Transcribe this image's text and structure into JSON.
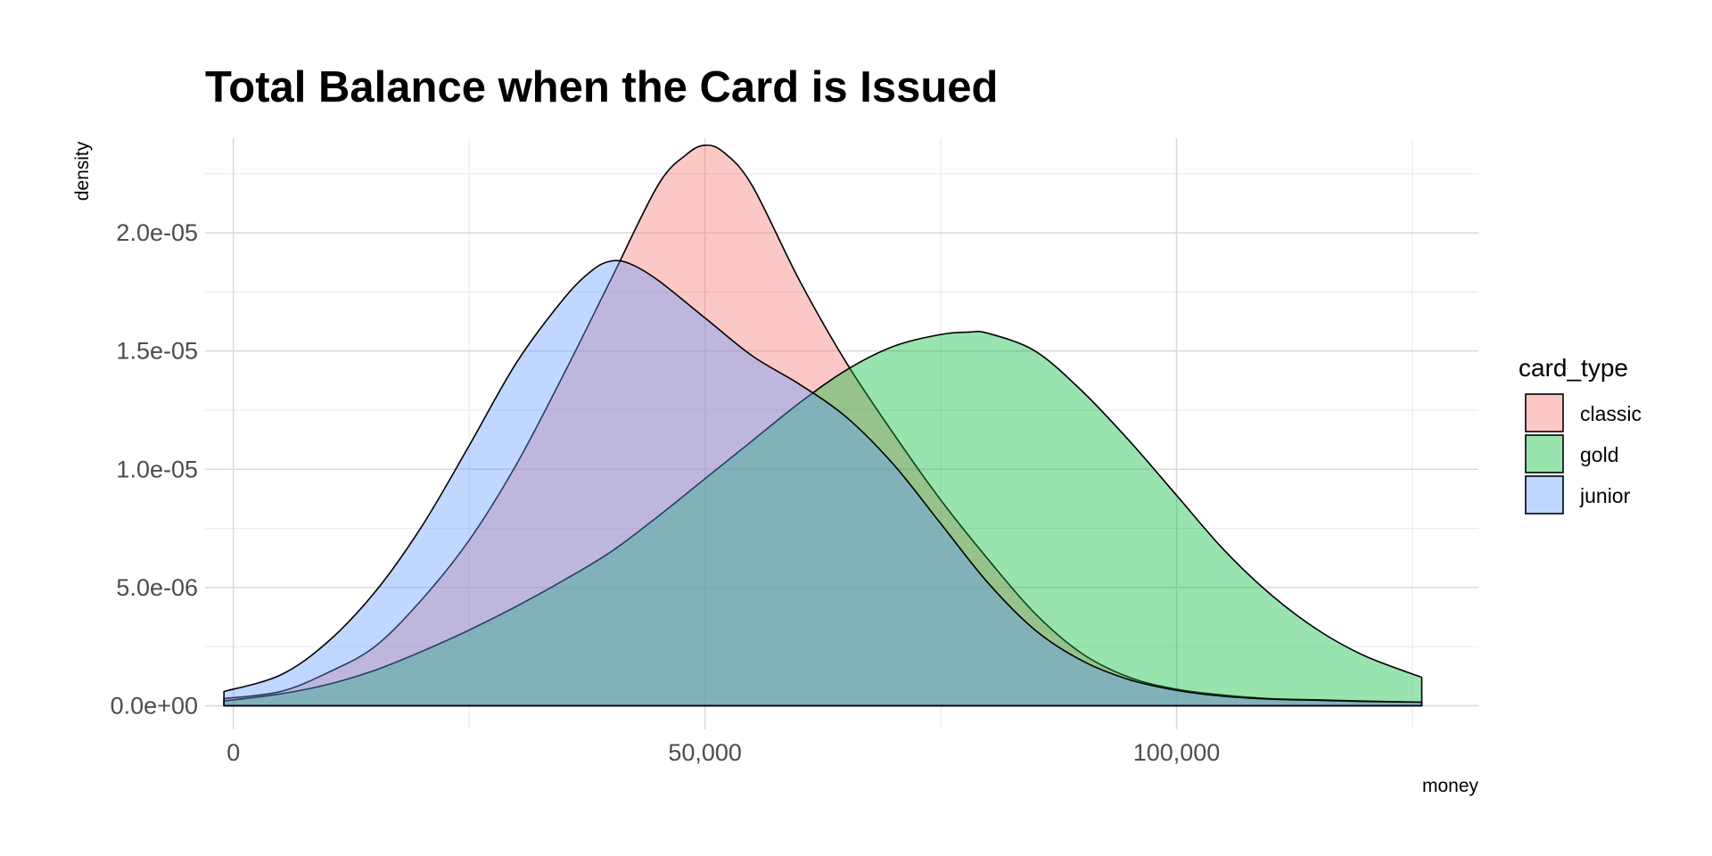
{
  "chart_data": {
    "type": "area",
    "subtype": "density",
    "title": "Total Balance when the Card is Issued",
    "xlabel": "money",
    "ylabel": "density",
    "xlim": [
      -3000,
      132000
    ],
    "ylim": [
      -1e-06,
      2.4e-05
    ],
    "x_ticks": [
      {
        "value": 0,
        "label": "0"
      },
      {
        "value": 50000,
        "label": "50,000"
      },
      {
        "value": 100000,
        "label": "100,000"
      }
    ],
    "x_minor_ticks": [
      25000,
      75000,
      125000
    ],
    "y_ticks": [
      {
        "value": 0,
        "label": "0.0e+00"
      },
      {
        "value": 5e-06,
        "label": "5.0e-06"
      },
      {
        "value": 1e-05,
        "label": "1.0e-05"
      },
      {
        "value": 1.5e-05,
        "label": "1.5e-05"
      },
      {
        "value": 2e-05,
        "label": "2.0e-05"
      }
    ],
    "y_minor_ticks": [
      2.5e-06,
      7.5e-06,
      1.25e-05,
      1.75e-05,
      2.25e-05
    ],
    "grid": true,
    "legend": {
      "title": "card_type",
      "position": "right"
    },
    "series": [
      {
        "name": "classic",
        "color": "#F8766D",
        "points": [
          [
            -1000,
            3e-07
          ],
          [
            5000,
            6e-07
          ],
          [
            10000,
            1.4e-06
          ],
          [
            15000,
            2.5e-06
          ],
          [
            20000,
            4.5e-06
          ],
          [
            25000,
            7e-06
          ],
          [
            30000,
            1.02e-05
          ],
          [
            35000,
            1.4e-05
          ],
          [
            40000,
            1.8e-05
          ],
          [
            45000,
            2.2e-05
          ],
          [
            48000,
            2.33e-05
          ],
          [
            50000,
            2.37e-05
          ],
          [
            52000,
            2.34e-05
          ],
          [
            55000,
            2.2e-05
          ],
          [
            60000,
            1.8e-05
          ],
          [
            65000,
            1.45e-05
          ],
          [
            70000,
            1.15e-05
          ],
          [
            75000,
            8.7e-06
          ],
          [
            80000,
            6.2e-06
          ],
          [
            85000,
            3.9e-06
          ],
          [
            90000,
            2.2e-06
          ],
          [
            95000,
            1.2e-06
          ],
          [
            100000,
            7e-07
          ],
          [
            105000,
            4.5e-07
          ],
          [
            110000,
            3e-07
          ],
          [
            115000,
            2.5e-07
          ],
          [
            120000,
            2e-07
          ],
          [
            126000,
            1.5e-07
          ]
        ]
      },
      {
        "name": "gold",
        "color": "#00BA38",
        "points": [
          [
            -1000,
            2e-07
          ],
          [
            5000,
            5e-07
          ],
          [
            10000,
            9e-07
          ],
          [
            15000,
            1.5e-06
          ],
          [
            20000,
            2.3e-06
          ],
          [
            25000,
            3.2e-06
          ],
          [
            30000,
            4.2e-06
          ],
          [
            35000,
            5.3e-06
          ],
          [
            40000,
            6.5e-06
          ],
          [
            45000,
            8e-06
          ],
          [
            50000,
            9.6e-06
          ],
          [
            55000,
            1.12e-05
          ],
          [
            60000,
            1.28e-05
          ],
          [
            65000,
            1.42e-05
          ],
          [
            70000,
            1.52e-05
          ],
          [
            75000,
            1.57e-05
          ],
          [
            78000,
            1.58e-05
          ],
          [
            80000,
            1.575e-05
          ],
          [
            85000,
            1.5e-05
          ],
          [
            90000,
            1.33e-05
          ],
          [
            95000,
            1.12e-05
          ],
          [
            100000,
            8.9e-06
          ],
          [
            105000,
            6.6e-06
          ],
          [
            110000,
            4.7e-06
          ],
          [
            115000,
            3.2e-06
          ],
          [
            120000,
            2.1e-06
          ],
          [
            126000,
            1.2e-06
          ]
        ]
      },
      {
        "name": "junior",
        "color": "#619CFF",
        "points": [
          [
            -1000,
            6e-07
          ],
          [
            5000,
            1.3e-06
          ],
          [
            10000,
            2.7e-06
          ],
          [
            15000,
            4.8e-06
          ],
          [
            20000,
            7.6e-06
          ],
          [
            25000,
            1.1e-05
          ],
          [
            30000,
            1.45e-05
          ],
          [
            35000,
            1.72e-05
          ],
          [
            38000,
            1.84e-05
          ],
          [
            40000,
            1.88e-05
          ],
          [
            42000,
            1.87e-05
          ],
          [
            45000,
            1.8e-05
          ],
          [
            50000,
            1.64e-05
          ],
          [
            55000,
            1.48e-05
          ],
          [
            60000,
            1.36e-05
          ],
          [
            65000,
            1.22e-05
          ],
          [
            70000,
            1.02e-05
          ],
          [
            75000,
            7.7e-06
          ],
          [
            80000,
            5.2e-06
          ],
          [
            85000,
            3.2e-06
          ],
          [
            90000,
            1.9e-06
          ],
          [
            95000,
            1.1e-06
          ],
          [
            100000,
            6.5e-07
          ],
          [
            105000,
            4e-07
          ],
          [
            110000,
            2.8e-07
          ],
          [
            115000,
            2.3e-07
          ],
          [
            120000,
            1.8e-07
          ],
          [
            126000,
            1.5e-07
          ]
        ]
      }
    ]
  }
}
